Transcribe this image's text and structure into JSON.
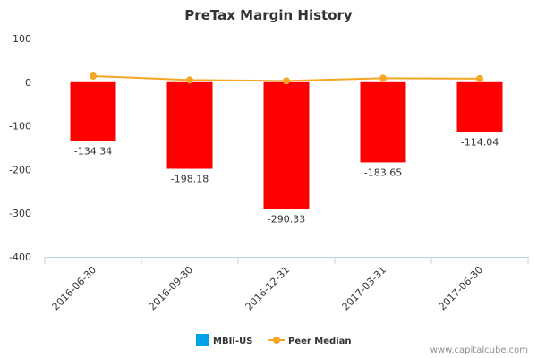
{
  "chart_data": {
    "type": "bar",
    "title": "PreTax Margin History",
    "categories": [
      "2016-06-30",
      "2016-09-30",
      "2016-12-31",
      "2017-03-31",
      "2017-06-30"
    ],
    "series": [
      {
        "name": "MBII-US",
        "type": "bar",
        "values": [
          -134.34,
          -198.18,
          -290.33,
          -183.65,
          -114.04
        ],
        "data_labels": [
          "-134.34",
          "-198.18",
          "-290.33",
          "-183.65",
          "-114.04"
        ]
      },
      {
        "name": "Peer Median",
        "type": "line",
        "values": [
          14,
          5,
          3,
          9,
          8
        ]
      }
    ],
    "ylim": [
      -400,
      100
    ],
    "yticks": [
      "100",
      "0",
      "-100",
      "-200",
      "-300",
      "-400"
    ],
    "yticks_values": [
      100,
      0,
      -100,
      -200,
      -300,
      -400
    ],
    "grid": false,
    "legend_position": "bottom",
    "colors": {
      "bar": "#ff0000",
      "line": "#f5a623",
      "legend_bar": "#00a2e8"
    }
  },
  "credit": "www.capitalcube.com"
}
